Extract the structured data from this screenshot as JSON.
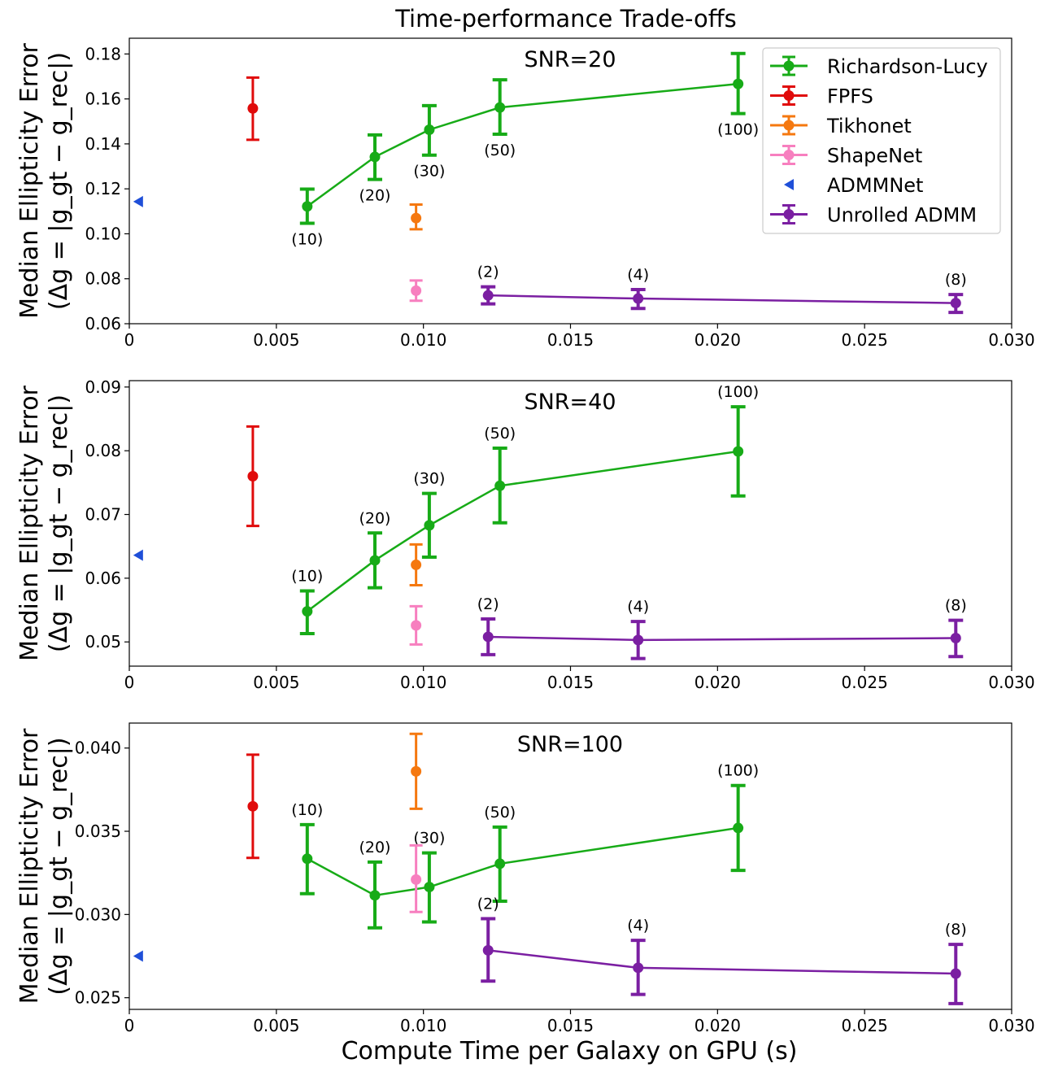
{
  "chart_data": {
    "type": "scatter",
    "title": "Time-performance Trade-offs",
    "xlabel": "Compute Time per Galaxy on GPU (s)",
    "ylabel_line1": "Median Ellipticity Error",
    "ylabel_line2": "(Δg = |g_gt − g_rec|)",
    "xlim": [
      0,
      0.03
    ],
    "xticks": [
      0,
      0.005,
      0.01,
      0.015,
      0.02,
      0.025,
      0.03
    ],
    "xtick_labels": [
      "0",
      "0.005",
      "0.010",
      "0.015",
      "0.020",
      "0.025",
      "0.030"
    ],
    "legend": {
      "position": "top-right",
      "entries": [
        "Richardson-Lucy",
        "FPFS",
        "Tikhonet",
        "ShapeNet",
        "ADMMNet",
        "Unrolled ADMM"
      ]
    },
    "colors": {
      "Richardson-Lucy": "#17ab17",
      "FPFS": "#e00b0b",
      "Tikhonet": "#f5780f",
      "ShapeNet": "#f77fbf",
      "ADMMNet": "#1f4fd8",
      "Unrolled ADMM": "#7b1fa2"
    },
    "panels": [
      {
        "annotation": "SNR=20",
        "ylim": [
          0.06,
          0.187
        ],
        "yticks": [
          0.06,
          0.08,
          0.1,
          0.12,
          0.14,
          0.16,
          0.18
        ],
        "ytick_labels": [
          "0.06",
          "0.08",
          "0.10",
          "0.12",
          "0.14",
          "0.16",
          "0.18"
        ],
        "series": [
          {
            "name": "Richardson-Lucy",
            "line": true,
            "x": [
              0.00605,
              0.00835,
              0.0102,
              0.0126,
              0.0207
            ],
            "y": [
              0.1122,
              0.1342,
              0.1463,
              0.1562,
              0.1667
            ],
            "err_low": [
              0.1047,
              0.1242,
              0.135,
              0.1443,
              0.1535
            ],
            "err_high": [
              0.1199,
              0.144,
              0.157,
              0.1685,
              0.1802
            ],
            "labels": [
              "(10)",
              "(20)",
              "(30)",
              "(50)",
              "(100)"
            ],
            "label_pos": "below"
          },
          {
            "name": "FPFS",
            "line": false,
            "x": [
              0.0042
            ],
            "y": [
              0.1558
            ],
            "err_low": [
              0.1418
            ],
            "err_high": [
              0.1695
            ]
          },
          {
            "name": "Tikhonet",
            "line": false,
            "x": [
              0.00975
            ],
            "y": [
              0.107
            ],
            "err_low": [
              0.102
            ],
            "err_high": [
              0.113
            ]
          },
          {
            "name": "ShapeNet",
            "line": false,
            "x": [
              0.00975
            ],
            "y": [
              0.0747
            ],
            "err_low": [
              0.0702
            ],
            "err_high": [
              0.0792
            ]
          },
          {
            "name": "ADMMNet",
            "line": false,
            "marker": "triangle-left",
            "x": [
              0.0003
            ],
            "y": [
              0.1143
            ]
          },
          {
            "name": "Unrolled ADMM",
            "line": true,
            "x": [
              0.0122,
              0.0173,
              0.0281
            ],
            "y": [
              0.0726,
              0.0712,
              0.0692
            ],
            "err_low": [
              0.0688,
              0.0668,
              0.065
            ],
            "err_high": [
              0.0764,
              0.0752,
              0.073
            ],
            "labels": [
              "(2)",
              "(4)",
              "(8)"
            ],
            "label_pos": "above"
          }
        ]
      },
      {
        "annotation": "SNR=40",
        "ylim": [
          0.0462,
          0.091
        ],
        "yticks": [
          0.05,
          0.06,
          0.07,
          0.08,
          0.09
        ],
        "ytick_labels": [
          "0.05",
          "0.06",
          "0.07",
          "0.08",
          "0.09"
        ],
        "series": [
          {
            "name": "Richardson-Lucy",
            "line": true,
            "x": [
              0.00605,
              0.00835,
              0.0102,
              0.0126,
              0.0207
            ],
            "y": [
              0.0548,
              0.0628,
              0.0683,
              0.0745,
              0.0799
            ],
            "err_low": [
              0.0513,
              0.0585,
              0.0633,
              0.0687,
              0.0729
            ],
            "err_high": [
              0.058,
              0.0671,
              0.0733,
              0.0804,
              0.0869
            ],
            "labels": [
              "(10)",
              "(20)",
              "(30)",
              "(50)",
              "(100)"
            ],
            "label_pos": "above"
          },
          {
            "name": "FPFS",
            "line": false,
            "x": [
              0.0042
            ],
            "y": [
              0.076
            ],
            "err_low": [
              0.0682
            ],
            "err_high": [
              0.0838
            ]
          },
          {
            "name": "Tikhonet",
            "line": false,
            "x": [
              0.00975
            ],
            "y": [
              0.0621
            ],
            "err_low": [
              0.0589
            ],
            "err_high": [
              0.0653
            ]
          },
          {
            "name": "ShapeNet",
            "line": false,
            "x": [
              0.00975
            ],
            "y": [
              0.0526
            ],
            "err_low": [
              0.0496
            ],
            "err_high": [
              0.0556
            ]
          },
          {
            "name": "ADMMNet",
            "line": false,
            "marker": "triangle-left",
            "x": [
              0.0003
            ],
            "y": [
              0.0636
            ]
          },
          {
            "name": "Unrolled ADMM",
            "line": true,
            "x": [
              0.0122,
              0.0173,
              0.0281
            ],
            "y": [
              0.0508,
              0.0503,
              0.0506
            ],
            "err_low": [
              0.048,
              0.0474,
              0.0477
            ],
            "err_high": [
              0.0536,
              0.0532,
              0.0534
            ],
            "labels": [
              "(2)",
              "(4)",
              "(8)"
            ],
            "label_pos": "above"
          }
        ]
      },
      {
        "annotation": "SNR=100",
        "ylim": [
          0.0243,
          0.0415
        ],
        "yticks": [
          0.025,
          0.03,
          0.035,
          0.04
        ],
        "ytick_labels": [
          "0.025",
          "0.030",
          "0.035",
          "0.040"
        ],
        "series": [
          {
            "name": "Richardson-Lucy",
            "line": true,
            "x": [
              0.00605,
              0.00835,
              0.0102,
              0.0126,
              0.0207
            ],
            "y": [
              0.03335,
              0.03115,
              0.03165,
              0.03305,
              0.0352
            ],
            "err_low": [
              0.03125,
              0.0292,
              0.02955,
              0.0308,
              0.03265
            ],
            "err_high": [
              0.0354,
              0.03315,
              0.0337,
              0.03525,
              0.03775
            ],
            "labels": [
              "(10)",
              "(20)",
              "(30)",
              "(50)",
              "(100)"
            ],
            "label_pos": "above"
          },
          {
            "name": "FPFS",
            "line": false,
            "x": [
              0.0042
            ],
            "y": [
              0.0365
            ],
            "err_low": [
              0.0334
            ],
            "err_high": [
              0.0396
            ]
          },
          {
            "name": "Tikhonet",
            "line": false,
            "x": [
              0.00975
            ],
            "y": [
              0.0386
            ],
            "err_low": [
              0.03635
            ],
            "err_high": [
              0.04085
            ]
          },
          {
            "name": "ShapeNet",
            "line": false,
            "x": [
              0.00975
            ],
            "y": [
              0.0321
            ],
            "err_low": [
              0.03015
            ],
            "err_high": [
              0.03415
            ]
          },
          {
            "name": "ADMMNet",
            "line": false,
            "marker": "triangle-left",
            "x": [
              0.0003
            ],
            "y": [
              0.0275
            ]
          },
          {
            "name": "Unrolled ADMM",
            "line": true,
            "x": [
              0.0122,
              0.0173,
              0.0281
            ],
            "y": [
              0.02785,
              0.0268,
              0.02645
            ],
            "err_low": [
              0.026,
              0.0252,
              0.02465
            ],
            "err_high": [
              0.02975,
              0.02845,
              0.0282
            ],
            "labels": [
              "(2)",
              "(4)",
              "(8)"
            ],
            "label_pos": "above"
          }
        ]
      }
    ]
  }
}
